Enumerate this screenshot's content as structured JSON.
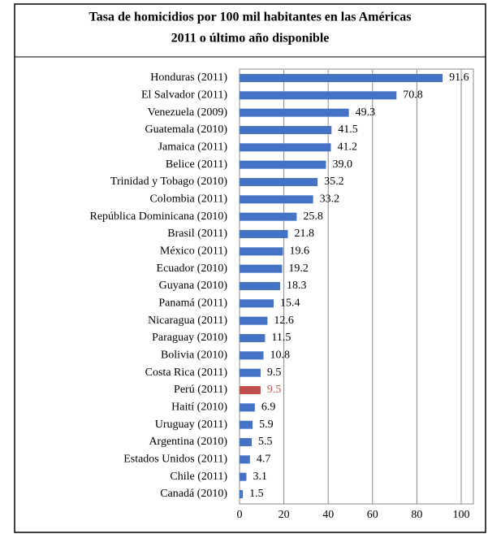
{
  "chart_data": {
    "type": "bar",
    "orientation": "horizontal",
    "title": "Tasa de homicidios por 100 mil habitantes en las Américas",
    "subtitle": "2011 o último año disponible",
    "categories": [
      "Honduras (2011)",
      "El Salvador (2011)",
      "Venezuela (2009)",
      "Guatemala (2010)",
      "Jamaica (2011)",
      "Belice (2011)",
      "Trinidad y Tobago (2010)",
      "Colombia (2011)",
      "República Dominicana (2010)",
      "Brasil (2011)",
      "México (2011)",
      "Ecuador (2010)",
      "Guyana (2010)",
      "Panamá (2011)",
      "Nicaragua (2011)",
      "Paraguay (2010)",
      "Bolivia (2010)",
      "Costa Rica (2011)",
      "Perú (2011)",
      "Haití (2010)",
      "Uruguay (2011)",
      "Argentina (2010)",
      "Estados Unidos (2011)",
      "Chile (2011)",
      "Canadá (2010)"
    ],
    "values": [
      91.6,
      70.8,
      49.3,
      41.5,
      41.2,
      39.0,
      35.2,
      33.2,
      25.8,
      21.8,
      19.6,
      19.2,
      18.3,
      15.4,
      12.6,
      11.5,
      10.8,
      9.5,
      9.5,
      6.9,
      5.9,
      5.5,
      4.7,
      3.1,
      1.5
    ],
    "value_labels": [
      "91.6",
      "70.8",
      "49.3",
      "41.5",
      "41.2",
      "39.0",
      "35.2",
      "33.2",
      "25.8",
      "21.8",
      "19.6",
      "19.2",
      "18.3",
      "15.4",
      "12.6",
      "11.5",
      "10.8",
      "9.5",
      "9.5",
      "6.9",
      "5.9",
      "5.5",
      "4.7",
      "3.1",
      "1.5"
    ],
    "colors": [
      "#4472c4",
      "#4472c4",
      "#4472c4",
      "#4472c4",
      "#4472c4",
      "#4472c4",
      "#4472c4",
      "#4472c4",
      "#4472c4",
      "#4472c4",
      "#4472c4",
      "#4472c4",
      "#4472c4",
      "#4472c4",
      "#4472c4",
      "#4472c4",
      "#4472c4",
      "#4472c4",
      "#c0504d",
      "#4472c4",
      "#4472c4",
      "#4472c4",
      "#4472c4",
      "#4472c4",
      "#4472c4"
    ],
    "xlim": [
      0,
      100
    ],
    "xticks": [
      0,
      20,
      40,
      60,
      80,
      100
    ],
    "grid": true
  }
}
